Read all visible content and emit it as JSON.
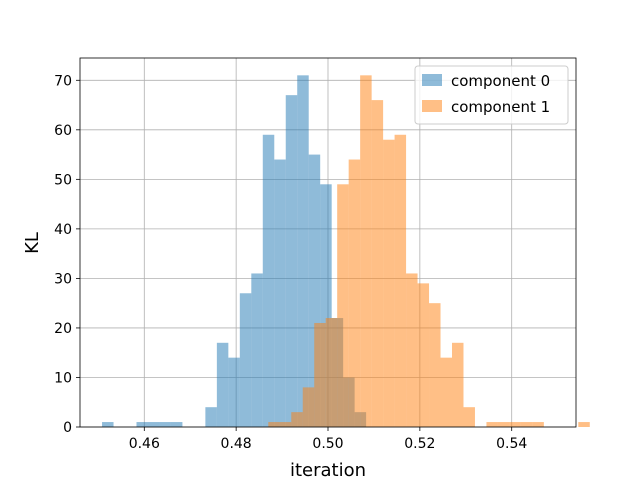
{
  "chart_data": {
    "type": "histogram",
    "title": "",
    "xlabel": "iteration",
    "ylabel": "KL",
    "xlim": [
      0.446,
      0.554
    ],
    "ylim": [
      0,
      74.5
    ],
    "xticks": [
      0.46,
      0.48,
      0.5,
      0.52,
      0.54
    ],
    "xtick_labels": [
      "0.46",
      "0.48",
      "0.50",
      "0.52",
      "0.54"
    ],
    "yticks": [
      0,
      10,
      20,
      30,
      40,
      50,
      60,
      70
    ],
    "ytick_labels": [
      "0",
      "10",
      "20",
      "30",
      "40",
      "50",
      "60",
      "70"
    ],
    "grid": true,
    "legend_position": "top-right",
    "series": [
      {
        "name": "component 0",
        "color": "#1f77b4",
        "alpha": 0.5,
        "bin_start": 0.4508,
        "bin_width": 0.0025,
        "counts": [
          1,
          0,
          0,
          1,
          1,
          1,
          1,
          0,
          0,
          4,
          17,
          14,
          27,
          31,
          59,
          54,
          67,
          71,
          55,
          49,
          22,
          10,
          3
        ]
      },
      {
        "name": "component 1",
        "color": "#ff7f0e",
        "alpha": 0.5,
        "bin_start": 0.487,
        "bin_width": 0.0025,
        "counts": [
          1,
          1,
          3,
          8,
          21,
          22,
          49,
          54,
          71,
          66,
          58,
          59,
          31,
          29,
          25,
          14,
          17,
          4,
          0,
          1,
          1,
          1,
          1,
          1,
          0,
          0,
          0,
          1
        ]
      }
    ]
  }
}
